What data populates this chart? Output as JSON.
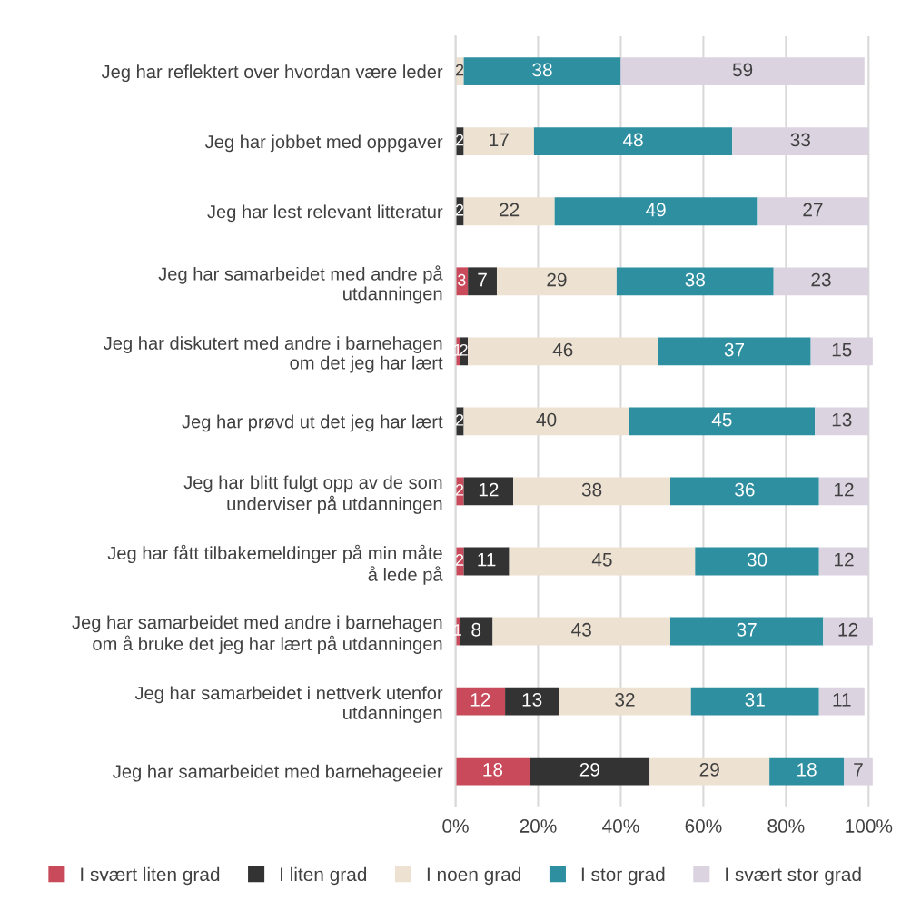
{
  "chart_data": {
    "type": "bar",
    "orientation": "horizontal",
    "stacked": true,
    "data_labels": true,
    "categories": [
      "Jeg har reflektert over hvordan være leder",
      "Jeg har jobbet med oppgaver",
      "Jeg har lest relevant litteratur",
      "Jeg har samarbeidet med andre på utdanningen",
      "Jeg har diskutert med andre i barnehagen om det jeg har lært",
      "Jeg har prøvd ut det jeg har lært",
      "Jeg har blitt fulgt opp av de som underviser på utdanningen",
      "Jeg har fått tilbakemeldinger på min måte å lede på",
      "Jeg har samarbeidet med andre i barnehagen om å bruke det jeg har lært på utdanningen",
      "Jeg har samarbeidet i nettverk utenfor utdanningen",
      "Jeg har samarbeidet med barnehageeier"
    ],
    "series": [
      {
        "name": "I svært liten grad",
        "color": "#c94a5a",
        "values": [
          null,
          null,
          null,
          3,
          1,
          null,
          2,
          2,
          1,
          12,
          18
        ]
      },
      {
        "name": "I liten grad",
        "color": "#333333",
        "values": [
          null,
          2,
          2,
          7,
          2,
          2,
          12,
          11,
          8,
          13,
          29
        ]
      },
      {
        "name": "I noen grad",
        "color": "#ede1d2",
        "values": [
          2,
          17,
          22,
          29,
          46,
          40,
          38,
          45,
          43,
          32,
          29
        ]
      },
      {
        "name": "I stor grad",
        "color": "#2e8fa0",
        "values": [
          38,
          48,
          49,
          38,
          37,
          45,
          36,
          30,
          37,
          31,
          18
        ]
      },
      {
        "name": "I svært stor grad",
        "color": "#dcd3e1",
        "values": [
          59,
          33,
          27,
          23,
          15,
          13,
          12,
          12,
          12,
          11,
          7
        ]
      }
    ],
    "xlim": [
      0,
      101
    ],
    "xticks": [
      {
        "value": 0,
        "label": "0%"
      },
      {
        "value": 20,
        "label": "20%"
      },
      {
        "value": 40,
        "label": "40%"
      },
      {
        "value": 60,
        "label": "60%"
      },
      {
        "value": 80,
        "label": "80%"
      },
      {
        "value": 100,
        "label": "100%"
      }
    ],
    "grid": "x",
    "legend": "bottom"
  }
}
